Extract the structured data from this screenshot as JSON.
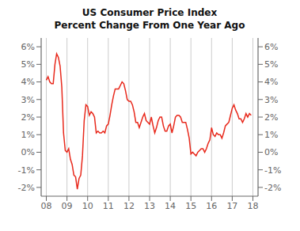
{
  "chart_data": {
    "type": "line",
    "title": "US Consumer Price Index",
    "subtitle": "Percent Change From One Year Ago",
    "color": "#e8291c",
    "grid": "x",
    "xlim": [
      2007.75,
      2018.25
    ],
    "xticks": [
      {
        "value": 2008,
        "label": "08"
      },
      {
        "value": 2009,
        "label": "09"
      },
      {
        "value": 2010,
        "label": "10"
      },
      {
        "value": 2011,
        "label": "11"
      },
      {
        "value": 2012,
        "label": "12"
      },
      {
        "value": 2013,
        "label": "13"
      },
      {
        "value": 2014,
        "label": "14"
      },
      {
        "value": 2015,
        "label": "15"
      },
      {
        "value": 2016,
        "label": "16"
      },
      {
        "value": 2017,
        "label": "17"
      },
      {
        "value": 2018,
        "label": "18"
      }
    ],
    "ylim": [
      -2.5,
      6.5
    ],
    "yticks": [
      {
        "value": -2,
        "label": "-2%"
      },
      {
        "value": -1,
        "label": "-1%"
      },
      {
        "value": 0,
        "label": "0%"
      },
      {
        "value": 1,
        "label": "1%"
      },
      {
        "value": 2,
        "label": "2%"
      },
      {
        "value": 3,
        "label": "3%"
      },
      {
        "value": 4,
        "label": "4%"
      },
      {
        "value": 5,
        "label": "5%"
      },
      {
        "value": 6,
        "label": "6%"
      }
    ],
    "y2lim": [
      -2.5,
      6.5
    ],
    "y2ticks": [
      {
        "value": -2,
        "label": "-2%"
      },
      {
        "value": -1,
        "label": "-1%"
      },
      {
        "value": 0,
        "label": "0%"
      },
      {
        "value": 1,
        "label": "1%"
      },
      {
        "value": 2,
        "label": "2%"
      },
      {
        "value": 3,
        "label": "3%"
      },
      {
        "value": 4,
        "label": "4%"
      },
      {
        "value": 5,
        "label": "5%"
      },
      {
        "value": 6,
        "label": "6%"
      }
    ],
    "x": [
      2008.0,
      2008.083,
      2008.167,
      2008.25,
      2008.333,
      2008.417,
      2008.5,
      2008.583,
      2008.667,
      2008.75,
      2008.833,
      2008.917,
      2009.0,
      2009.083,
      2009.167,
      2009.25,
      2009.333,
      2009.417,
      2009.5,
      2009.583,
      2009.667,
      2009.75,
      2009.833,
      2009.917,
      2010.0,
      2010.083,
      2010.167,
      2010.25,
      2010.333,
      2010.417,
      2010.5,
      2010.583,
      2010.667,
      2010.75,
      2010.833,
      2010.917,
      2011.0,
      2011.083,
      2011.167,
      2011.25,
      2011.333,
      2011.417,
      2011.5,
      2011.583,
      2011.667,
      2011.75,
      2011.833,
      2011.917,
      2012.0,
      2012.083,
      2012.167,
      2012.25,
      2012.333,
      2012.417,
      2012.5,
      2012.583,
      2012.667,
      2012.75,
      2012.833,
      2012.917,
      2013.0,
      2013.083,
      2013.167,
      2013.25,
      2013.333,
      2013.417,
      2013.5,
      2013.583,
      2013.667,
      2013.75,
      2013.833,
      2013.917,
      2014.0,
      2014.083,
      2014.167,
      2014.25,
      2014.333,
      2014.417,
      2014.5,
      2014.583,
      2014.667,
      2014.75,
      2014.833,
      2014.917,
      2015.0,
      2015.083,
      2015.167,
      2015.25,
      2015.333,
      2015.417,
      2015.5,
      2015.583,
      2015.667,
      2015.75,
      2015.833,
      2015.917,
      2016.0,
      2016.083,
      2016.167,
      2016.25,
      2016.333,
      2016.417,
      2016.5,
      2016.583,
      2016.667,
      2016.75,
      2016.833,
      2016.917,
      2017.0,
      2017.083,
      2017.167,
      2017.25,
      2017.333,
      2017.417,
      2017.5,
      2017.583,
      2017.667,
      2017.75,
      2017.833,
      2017.917
    ],
    "values": [
      4.1,
      4.3,
      4.0,
      3.9,
      3.9,
      5.0,
      5.6,
      5.4,
      4.9,
      3.7,
      1.1,
      0.1,
      0.0,
      0.2,
      -0.4,
      -0.7,
      -1.3,
      -1.4,
      -2.1,
      -1.5,
      -1.3,
      -0.2,
      1.8,
      2.7,
      2.6,
      2.1,
      2.3,
      2.2,
      2.0,
      1.1,
      1.2,
      1.1,
      1.1,
      1.2,
      1.1,
      1.5,
      1.6,
      2.1,
      2.7,
      3.2,
      3.6,
      3.6,
      3.6,
      3.8,
      4.0,
      3.9,
      3.5,
      3.0,
      2.9,
      2.9,
      2.7,
      2.3,
      1.7,
      1.7,
      1.4,
      1.7,
      2.0,
      2.2,
      1.8,
      1.7,
      1.6,
      2.0,
      1.5,
      1.1,
      1.4,
      1.8,
      2.0,
      2.0,
      1.5,
      1.2,
      1.2,
      1.5,
      1.6,
      1.1,
      1.5,
      2.0,
      2.1,
      2.1,
      2.0,
      1.7,
      1.7,
      1.7,
      1.3,
      0.8,
      -0.1,
      0.0,
      -0.1,
      -0.2,
      0.0,
      0.1,
      0.2,
      0.2,
      0.0,
      0.2,
      0.5,
      0.7,
      1.4,
      1.0,
      0.9,
      1.1,
      1.0,
      1.0,
      0.8,
      1.1,
      1.5,
      1.6,
      1.7,
      2.1,
      2.5,
      2.7,
      2.4,
      2.2,
      1.9,
      1.9,
      1.7,
      1.9,
      2.2,
      2.0,
      2.2,
      2.1
    ]
  }
}
